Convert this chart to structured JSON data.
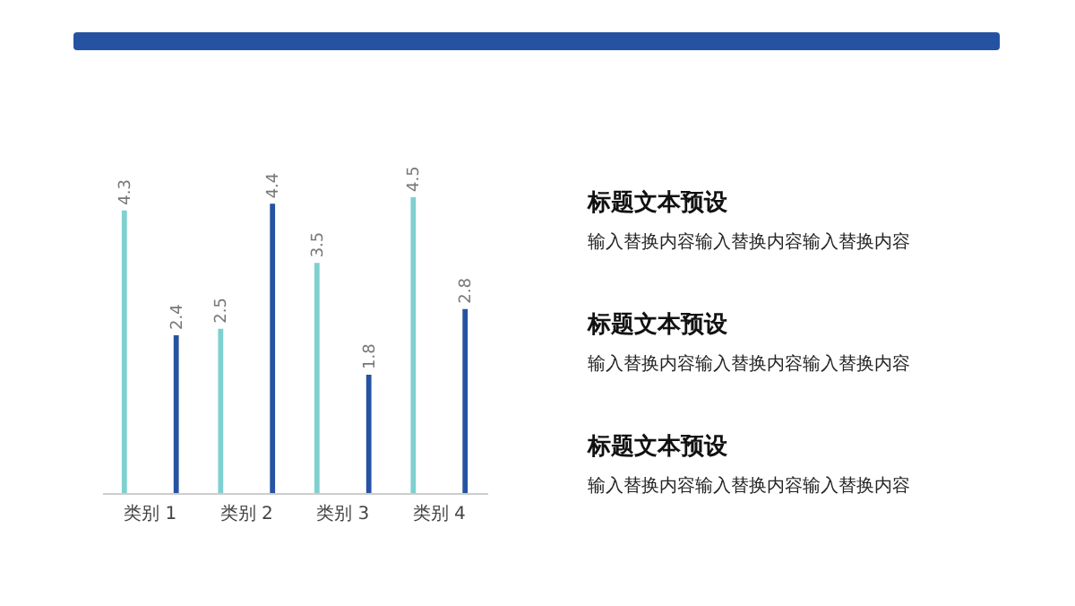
{
  "chart_data": {
    "type": "bar",
    "categories": [
      "类别 1",
      "类别 2",
      "类别 3",
      "类别 4"
    ],
    "series": [
      {
        "color": "#7fd0d0",
        "values": [
          4.3,
          2.5,
          3.5,
          4.5
        ]
      },
      {
        "color": "#2553a1",
        "values": [
          2.4,
          4.4,
          1.8,
          2.8
        ]
      }
    ],
    "tick_labels": "x",
    "data_labels": true,
    "annotations": [
      "标题文本预设",
      "输入替换内容输入替换内容输入替换内容",
      "标题文本预设",
      "输入替换内容输入替换内容输入替换内容",
      "标题文本预设",
      "输入替换内容输入替换内容输入替换内容"
    ]
  }
}
